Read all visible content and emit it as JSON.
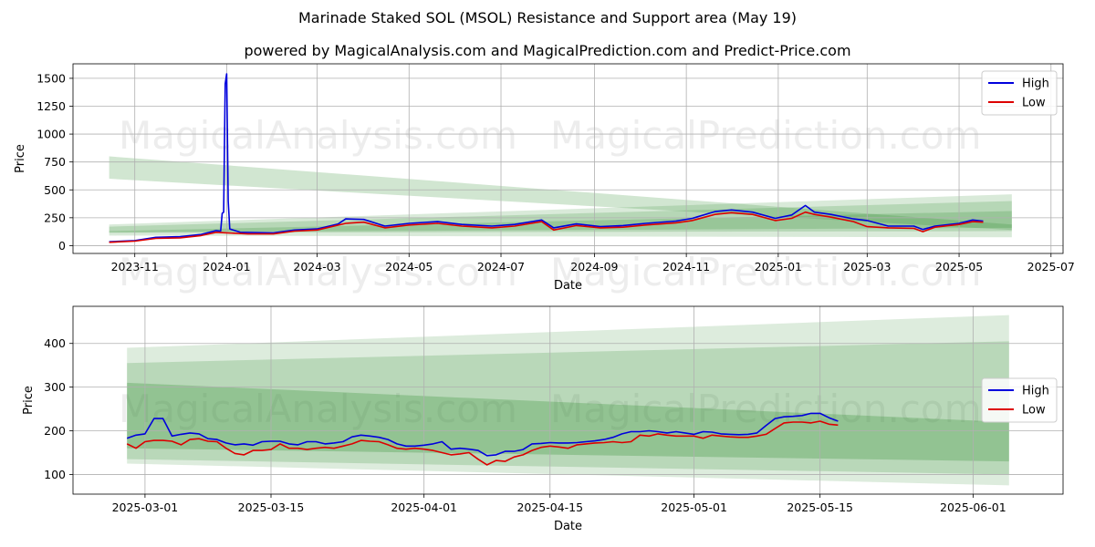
{
  "title": "Marinade Staked SOL (MSOL) Resistance and Support area (May 19)",
  "subtitle": "powered by MagicalAnalysis.com and MagicalPrediction.com and Predict-Price.com",
  "watermarks": [
    "MagicalAnalysis.com",
    "MagicalPrediction.com"
  ],
  "colors": {
    "high": "#0000dd",
    "low": "#dd0000",
    "band": "#2e8b2e"
  },
  "chart_data": [
    {
      "type": "line",
      "xlabel": "Date",
      "ylabel": "Price",
      "x_axis": "date",
      "xlim": [
        "2023-09-21",
        "2025-07-09"
      ],
      "ylim": [
        -70,
        1630
      ],
      "xticks": [
        "2023-11",
        "2024-01",
        "2024-03",
        "2024-05",
        "2024-07",
        "2024-09",
        "2024-11",
        "2025-01",
        "2025-03",
        "2025-05",
        "2025-07"
      ],
      "yticks": [
        0,
        250,
        500,
        750,
        1000,
        1250,
        1500
      ],
      "legend": {
        "position": "top-right",
        "entries": [
          "High",
          "Low"
        ]
      },
      "grid": true,
      "bands": [
        {
          "x": [
            "2023-10-15",
            "2025-06-05"
          ],
          "upper": [
            800,
            190
          ],
          "lower": [
            600,
            140
          ],
          "opacity": 0.22
        },
        {
          "x": [
            "2023-10-15",
            "2025-06-05"
          ],
          "upper": [
            190,
            460
          ],
          "lower": [
            90,
            75
          ],
          "opacity": 0.18
        },
        {
          "x": [
            "2023-10-15",
            "2025-06-05"
          ],
          "upper": [
            170,
            400
          ],
          "lower": [
            115,
            130
          ],
          "opacity": 0.2
        },
        {
          "x": [
            "2023-10-15",
            "2025-06-05"
          ],
          "upper": [
            130,
            310
          ],
          "lower": [
            120,
            160
          ],
          "opacity": 0.22
        }
      ],
      "series": [
        {
          "name": "High",
          "x": [
            "2023-10-15",
            "2023-11-01",
            "2023-11-15",
            "2023-12-01",
            "2023-12-15",
            "2023-12-25",
            "2023-12-28",
            "2023-12-29",
            "2023-12-30",
            "2023-12-31",
            "2024-01-01",
            "2024-01-02",
            "2024-01-03",
            "2024-01-10",
            "2024-02-01",
            "2024-02-15",
            "2024-03-01",
            "2024-03-15",
            "2024-03-20",
            "2024-04-01",
            "2024-04-15",
            "2024-05-01",
            "2024-05-20",
            "2024-06-05",
            "2024-06-25",
            "2024-07-10",
            "2024-07-28",
            "2024-08-05",
            "2024-08-20",
            "2024-09-05",
            "2024-09-20",
            "2024-10-05",
            "2024-10-25",
            "2024-11-05",
            "2024-11-20",
            "2024-12-01",
            "2024-12-15",
            "2024-12-30",
            "2025-01-10",
            "2025-01-19",
            "2025-01-25",
            "2025-02-05",
            "2025-02-20",
            "2025-03-01",
            "2025-03-15",
            "2025-04-01",
            "2025-04-07",
            "2025-04-15",
            "2025-05-01",
            "2025-05-10",
            "2025-05-17"
          ],
          "values": [
            35,
            45,
            75,
            80,
            100,
            135,
            130,
            290,
            300,
            1450,
            1540,
            400,
            150,
            120,
            115,
            140,
            150,
            195,
            240,
            235,
            175,
            200,
            215,
            190,
            175,
            190,
            230,
            160,
            195,
            170,
            180,
            200,
            220,
            245,
            305,
            320,
            300,
            245,
            275,
            360,
            300,
            280,
            240,
            225,
            175,
            175,
            145,
            175,
            200,
            230,
            220
          ]
        },
        {
          "name": "Low",
          "x": [
            "2023-10-15",
            "2023-11-01",
            "2023-11-15",
            "2023-12-01",
            "2023-12-15",
            "2023-12-25",
            "2024-01-01",
            "2024-01-15",
            "2024-02-01",
            "2024-02-15",
            "2024-03-01",
            "2024-03-20",
            "2024-04-01",
            "2024-04-15",
            "2024-05-01",
            "2024-05-20",
            "2024-06-05",
            "2024-06-25",
            "2024-07-10",
            "2024-07-28",
            "2024-08-05",
            "2024-08-20",
            "2024-09-05",
            "2024-09-20",
            "2024-10-05",
            "2024-10-25",
            "2024-11-05",
            "2024-11-20",
            "2024-12-01",
            "2024-12-15",
            "2024-12-30",
            "2025-01-10",
            "2025-01-19",
            "2025-01-25",
            "2025-02-05",
            "2025-02-20",
            "2025-03-01",
            "2025-03-15",
            "2025-04-01",
            "2025-04-07",
            "2025-04-15",
            "2025-05-01",
            "2025-05-10",
            "2025-05-17"
          ],
          "values": [
            30,
            40,
            65,
            70,
            90,
            120,
            115,
            105,
            105,
            130,
            140,
            200,
            210,
            160,
            185,
            200,
            175,
            160,
            175,
            215,
            140,
            180,
            160,
            165,
            185,
            205,
            225,
            280,
            295,
            280,
            225,
            245,
            300,
            280,
            255,
            215,
            170,
            160,
            155,
            125,
            165,
            190,
            215,
            210
          ]
        }
      ]
    },
    {
      "type": "line",
      "xlabel": "Date",
      "ylabel": "Price",
      "x_axis": "date",
      "xlim": [
        "2025-02-21",
        "2025-06-11"
      ],
      "ylim": [
        55,
        485
      ],
      "xticks": [
        "2025-03-01",
        "2025-03-15",
        "2025-04-01",
        "2025-04-15",
        "2025-05-01",
        "2025-05-15",
        "2025-06-01"
      ],
      "yticks": [
        100,
        200,
        300,
        400
      ],
      "legend": {
        "position": "center-right",
        "entries": [
          "High",
          "Low"
        ]
      },
      "grid": true,
      "bands": [
        {
          "x": [
            "2025-02-27",
            "2025-06-05"
          ],
          "upper": [
            390,
            465
          ],
          "lower": [
            125,
            75
          ],
          "opacity": 0.16
        },
        {
          "x": [
            "2025-02-27",
            "2025-06-05"
          ],
          "upper": [
            355,
            405
          ],
          "lower": [
            135,
            100
          ],
          "opacity": 0.2
        },
        {
          "x": [
            "2025-02-27",
            "2025-06-05"
          ],
          "upper": [
            310,
            220
          ],
          "lower": [
            160,
            130
          ],
          "opacity": 0.28
        }
      ],
      "series": [
        {
          "name": "High",
          "x": [
            "2025-02-27",
            "2025-02-28",
            "2025-03-01",
            "2025-03-02",
            "2025-03-03",
            "2025-03-04",
            "2025-03-05",
            "2025-03-06",
            "2025-03-07",
            "2025-03-08",
            "2025-03-09",
            "2025-03-10",
            "2025-03-11",
            "2025-03-12",
            "2025-03-13",
            "2025-03-14",
            "2025-03-15",
            "2025-03-16",
            "2025-03-17",
            "2025-03-18",
            "2025-03-19",
            "2025-03-20",
            "2025-03-21",
            "2025-03-22",
            "2025-03-23",
            "2025-03-24",
            "2025-03-25",
            "2025-03-26",
            "2025-03-27",
            "2025-03-28",
            "2025-03-29",
            "2025-03-30",
            "2025-03-31",
            "2025-04-01",
            "2025-04-02",
            "2025-04-03",
            "2025-04-04",
            "2025-04-05",
            "2025-04-06",
            "2025-04-07",
            "2025-04-08",
            "2025-04-09",
            "2025-04-10",
            "2025-04-11",
            "2025-04-12",
            "2025-04-13",
            "2025-04-14",
            "2025-04-15",
            "2025-04-16",
            "2025-04-17",
            "2025-04-18",
            "2025-04-19",
            "2025-04-20",
            "2025-04-21",
            "2025-04-22",
            "2025-04-23",
            "2025-04-24",
            "2025-04-25",
            "2025-04-26",
            "2025-04-27",
            "2025-04-28",
            "2025-04-29",
            "2025-04-30",
            "2025-05-01",
            "2025-05-02",
            "2025-05-03",
            "2025-05-04",
            "2025-05-05",
            "2025-05-06",
            "2025-05-07",
            "2025-05-08",
            "2025-05-09",
            "2025-05-10",
            "2025-05-11",
            "2025-05-12",
            "2025-05-13",
            "2025-05-14",
            "2025-05-15",
            "2025-05-16",
            "2025-05-17"
          ],
          "values": [
            183,
            190,
            193,
            228,
            228,
            188,
            192,
            195,
            193,
            182,
            180,
            172,
            168,
            170,
            167,
            175,
            176,
            176,
            170,
            168,
            175,
            175,
            170,
            172,
            175,
            186,
            190,
            188,
            185,
            180,
            170,
            165,
            165,
            167,
            170,
            175,
            158,
            160,
            158,
            155,
            143,
            145,
            153,
            153,
            157,
            170,
            171,
            173,
            172,
            172,
            173,
            175,
            177,
            180,
            185,
            193,
            198,
            198,
            200,
            198,
            195,
            198,
            195,
            192,
            198,
            197,
            193,
            192,
            191,
            192,
            195,
            212,
            228,
            232,
            233,
            235,
            240,
            240,
            230,
            222
          ]
        },
        {
          "name": "Low",
          "x": [
            "2025-02-27",
            "2025-02-28",
            "2025-03-01",
            "2025-03-02",
            "2025-03-03",
            "2025-03-04",
            "2025-03-05",
            "2025-03-06",
            "2025-03-07",
            "2025-03-08",
            "2025-03-09",
            "2025-03-10",
            "2025-03-11",
            "2025-03-12",
            "2025-03-13",
            "2025-03-14",
            "2025-03-15",
            "2025-03-16",
            "2025-03-17",
            "2025-03-18",
            "2025-03-19",
            "2025-03-20",
            "2025-03-21",
            "2025-03-22",
            "2025-03-23",
            "2025-03-24",
            "2025-03-25",
            "2025-03-26",
            "2025-03-27",
            "2025-03-28",
            "2025-03-29",
            "2025-03-30",
            "2025-03-31",
            "2025-04-01",
            "2025-04-02",
            "2025-04-03",
            "2025-04-04",
            "2025-04-05",
            "2025-04-06",
            "2025-04-07",
            "2025-04-08",
            "2025-04-09",
            "2025-04-10",
            "2025-04-11",
            "2025-04-12",
            "2025-04-13",
            "2025-04-14",
            "2025-04-15",
            "2025-04-16",
            "2025-04-17",
            "2025-04-18",
            "2025-04-19",
            "2025-04-20",
            "2025-04-21",
            "2025-04-22",
            "2025-04-23",
            "2025-04-24",
            "2025-04-25",
            "2025-04-26",
            "2025-04-27",
            "2025-04-28",
            "2025-04-29",
            "2025-04-30",
            "2025-05-01",
            "2025-05-02",
            "2025-05-03",
            "2025-05-04",
            "2025-05-05",
            "2025-05-06",
            "2025-05-07",
            "2025-05-08",
            "2025-05-09",
            "2025-05-10",
            "2025-05-11",
            "2025-05-12",
            "2025-05-13",
            "2025-05-14",
            "2025-05-15",
            "2025-05-16",
            "2025-05-17"
          ],
          "values": [
            170,
            160,
            175,
            178,
            178,
            176,
            168,
            180,
            182,
            176,
            175,
            160,
            148,
            145,
            155,
            155,
            157,
            170,
            160,
            160,
            157,
            160,
            162,
            160,
            165,
            170,
            178,
            176,
            175,
            168,
            160,
            158,
            160,
            158,
            155,
            150,
            145,
            147,
            150,
            135,
            122,
            132,
            130,
            140,
            145,
            155,
            162,
            165,
            163,
            160,
            168,
            170,
            172,
            173,
            175,
            173,
            175,
            190,
            188,
            193,
            190,
            188,
            188,
            188,
            183,
            190,
            188,
            186,
            185,
            185,
            188,
            192,
            205,
            218,
            220,
            220,
            218,
            222,
            215,
            213
          ]
        }
      ]
    }
  ]
}
